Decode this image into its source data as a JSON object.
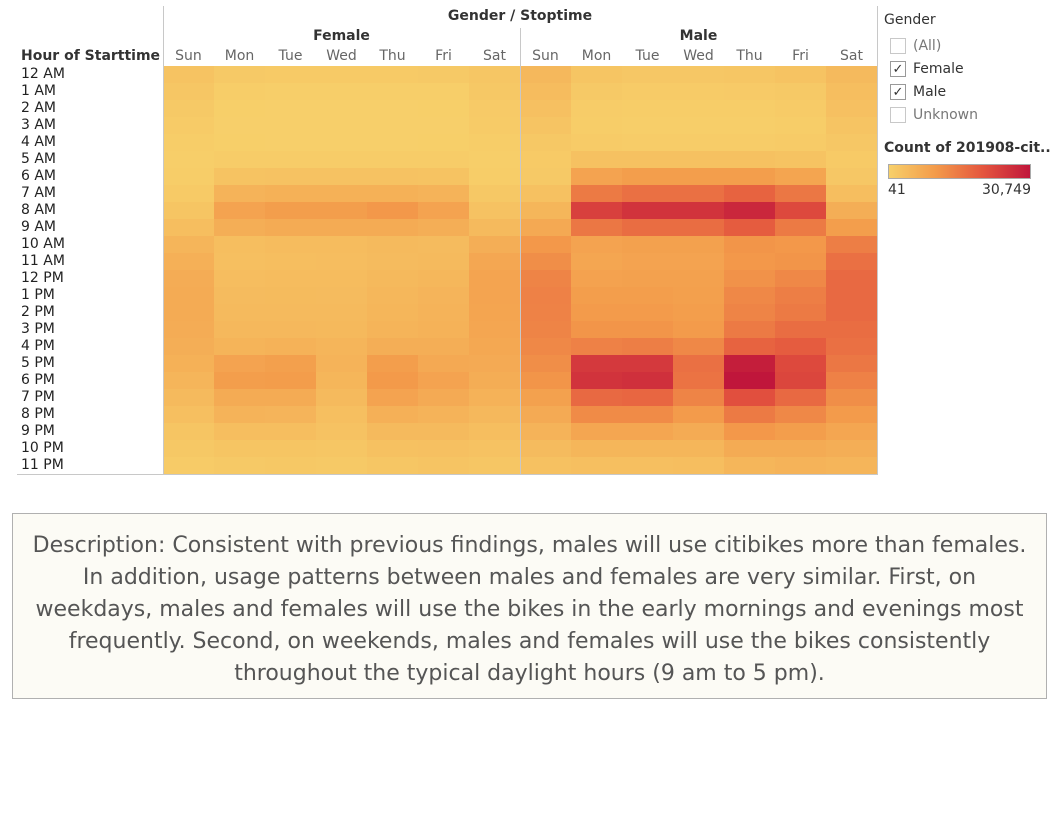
{
  "chart_data": {
    "type": "heatmap",
    "title": "Gender / Stoptime",
    "row_header": "Hour of Starttime",
    "columns_header": "Gender / Stoptime",
    "groups": [
      "Female",
      "Male"
    ],
    "days": [
      "Sun",
      "Mon",
      "Tue",
      "Wed",
      "Thu",
      "Fri",
      "Sat"
    ],
    "hours": [
      "12 AM",
      "1 AM",
      "2 AM",
      "3 AM",
      "4 AM",
      "5 AM",
      "6 AM",
      "7 AM",
      "8 AM",
      "9 AM",
      "10 AM",
      "11 AM",
      "12 PM",
      "1 PM",
      "2 PM",
      "3 PM",
      "4 PM",
      "5 PM",
      "6 PM",
      "7 PM",
      "8 PM",
      "9 PM",
      "10 PM",
      "11 PM"
    ],
    "color_scale": {
      "min": 41,
      "max": 30749,
      "min_label": "41",
      "max_label": "30,749",
      "colors": [
        "#f7d06a",
        "#f39a4a",
        "#e4553e",
        "#c0163b"
      ]
    },
    "values": {
      "Female": [
        [
          2500,
          1400,
          1200,
          1200,
          1200,
          1400,
          1900
        ],
        [
          1900,
          600,
          400,
          400,
          400,
          500,
          1500
        ],
        [
          1400,
          300,
          200,
          200,
          200,
          300,
          1100
        ],
        [
          1000,
          200,
          150,
          150,
          150,
          200,
          900
        ],
        [
          700,
          250,
          200,
          200,
          200,
          250,
          600
        ],
        [
          500,
          800,
          800,
          800,
          800,
          800,
          500
        ],
        [
          600,
          2500,
          2700,
          2700,
          2700,
          2500,
          700
        ],
        [
          1200,
          5500,
          6000,
          6000,
          6000,
          5500,
          1500
        ],
        [
          2200,
          8500,
          9500,
          9500,
          10500,
          8500,
          2700
        ],
        [
          3500,
          6500,
          7000,
          7000,
          7000,
          6500,
          4200
        ],
        [
          5200,
          3500,
          3800,
          3800,
          4200,
          4000,
          6500
        ],
        [
          6200,
          3300,
          3500,
          3600,
          4000,
          4200,
          7800
        ],
        [
          6800,
          3600,
          3800,
          3800,
          4400,
          4700,
          8300
        ],
        [
          7000,
          4000,
          4100,
          4000,
          4800,
          5300,
          8300
        ],
        [
          7000,
          4200,
          4300,
          4200,
          5000,
          5500,
          8200
        ],
        [
          6800,
          4600,
          4600,
          4400,
          5400,
          5800,
          8000
        ],
        [
          6500,
          5400,
          5700,
          5200,
          6500,
          6500,
          7600
        ],
        [
          6000,
          8500,
          9200,
          5500,
          9500,
          7500,
          7200
        ],
        [
          5200,
          9500,
          9800,
          5000,
          10200,
          8500,
          6600
        ],
        [
          4200,
          7000,
          7000,
          4200,
          8500,
          7200,
          5700
        ],
        [
          3200,
          5500,
          5300,
          3300,
          6200,
          5500,
          4600
        ],
        [
          2200,
          3500,
          3500,
          2700,
          4200,
          4200,
          3500
        ],
        [
          1500,
          2200,
          2200,
          2000,
          2900,
          3000,
          2700
        ],
        [
          900,
          1400,
          1500,
          1400,
          2000,
          2300,
          2000
        ]
      ],
      "Male": [
        [
          4500,
          2200,
          1800,
          1800,
          2000,
          2500,
          4200
        ],
        [
          3800,
          1400,
          1000,
          1000,
          1100,
          1400,
          3500
        ],
        [
          3000,
          800,
          600,
          600,
          700,
          900,
          3000
        ],
        [
          2300,
          600,
          500,
          500,
          500,
          700,
          2400
        ],
        [
          1600,
          900,
          800,
          800,
          800,
          900,
          1800
        ],
        [
          1200,
          2800,
          2800,
          2800,
          2800,
          2600,
          1200
        ],
        [
          1400,
          8500,
          9500,
          9500,
          9500,
          8200,
          1800
        ],
        [
          2800,
          15000,
          16500,
          16500,
          18500,
          15500,
          3500
        ],
        [
          5000,
          24000,
          26000,
          26000,
          28000,
          22500,
          6500
        ],
        [
          7500,
          15500,
          17000,
          17000,
          19500,
          15000,
          9500
        ],
        [
          10500,
          8500,
          9000,
          9000,
          11000,
          10500,
          14500
        ],
        [
          12000,
          8000,
          8500,
          8500,
          10500,
          11000,
          16500
        ],
        [
          13500,
          8800,
          9000,
          9000,
          11500,
          13000,
          17500
        ],
        [
          14000,
          9500,
          9500,
          9200,
          13000,
          14500,
          17500
        ],
        [
          13800,
          10000,
          10000,
          9500,
          13500,
          15000,
          17500
        ],
        [
          13500,
          11000,
          11000,
          10000,
          15000,
          17000,
          17000
        ],
        [
          13000,
          14000,
          14500,
          13000,
          18500,
          19500,
          16500
        ],
        [
          12000,
          25000,
          25000,
          16500,
          29500,
          22500,
          15500
        ],
        [
          11000,
          26000,
          26500,
          16000,
          30749,
          23000,
          14000
        ],
        [
          9000,
          17500,
          18000,
          13500,
          21500,
          17500,
          12000
        ],
        [
          7200,
          12500,
          12500,
          10000,
          15000,
          13000,
          10000
        ],
        [
          5500,
          8000,
          8000,
          7000,
          10500,
          9500,
          8000
        ],
        [
          4000,
          5000,
          5000,
          5000,
          7000,
          7000,
          6500
        ],
        [
          2800,
          3200,
          3200,
          3500,
          5000,
          5500,
          5200
        ]
      ]
    }
  },
  "legend": {
    "title": "Gender",
    "items": [
      {
        "label": "(All)",
        "checked": false
      },
      {
        "label": "Female",
        "checked": true
      },
      {
        "label": "Male",
        "checked": true
      },
      {
        "label": "Unknown",
        "checked": false
      }
    ],
    "check_glyph": "✓",
    "scale_title": "Count of 201908-cit..",
    "scale_min_label": "41",
    "scale_max_label": "30,749"
  },
  "description": "Description: Consistent with previous findings, males will use citibikes more than females. In addition, usage patterns between males and females are very similar. First, on weekdays, males and females will use the bikes in the early mornings and evenings most frequently. Second, on weekends, males and females will use the bikes consistently throughout the typical daylight hours (9 am to 5 pm)."
}
